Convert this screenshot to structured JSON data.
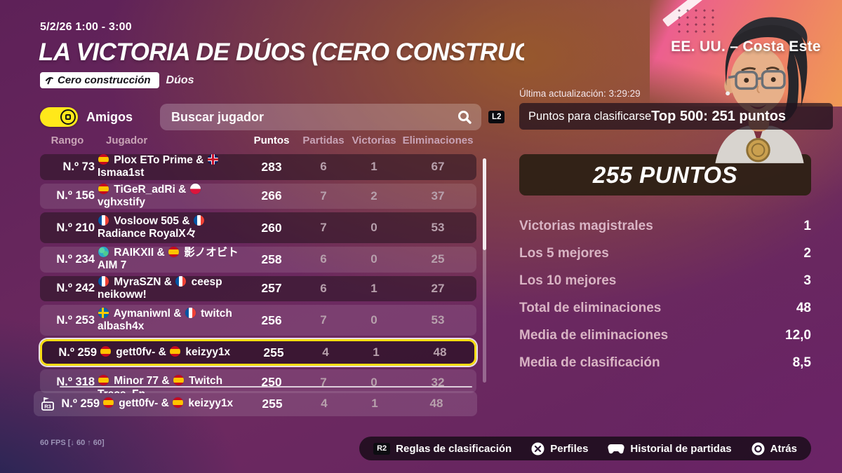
{
  "header": {
    "date_range": "5/2/26 1:00 - 3:00",
    "title": "LA VICTORIA DE DÚOS (CERO CONSTRUC",
    "mode_badge": "Cero construcción",
    "duos_label": "Dúos"
  },
  "region": "EE. UU. – Costa Este",
  "controls": {
    "friends_toggle_label": "Amigos",
    "friends_toggle_on": true,
    "search_placeholder": "Buscar jugador",
    "search_shortcut": "L2"
  },
  "table": {
    "columns": [
      "Rango",
      "Jugador",
      "Puntos",
      "Partidas",
      "Victorias",
      "Eliminaciones"
    ],
    "rows": [
      {
        "rank": "N.º 73",
        "flag1": "es",
        "name1": "Plox ETo Prime",
        "flag2": "gb",
        "name2": "Ismaa1st",
        "points": "283",
        "matches": "6",
        "wins": "1",
        "elims": "67",
        "style": "dark"
      },
      {
        "rank": "N.º 156",
        "flag1": "es",
        "name1": "TiGeR_adRi",
        "flag2": "pl",
        "name2": "vghxstify",
        "points": "266",
        "matches": "7",
        "wins": "2",
        "elims": "37",
        "style": "light"
      },
      {
        "rank": "N.º 210",
        "flag1": "fr",
        "name1": "Vosloow 505",
        "flag2": "fr",
        "name2": "Radiance RoyalX々",
        "points": "260",
        "matches": "7",
        "wins": "0",
        "elims": "53",
        "style": "dark tall"
      },
      {
        "rank": "N.º 234",
        "flag1": "globe",
        "name1": "RAIKXII",
        "flag2": "es",
        "name2": "影ノオビト AIM 7",
        "points": "258",
        "matches": "6",
        "wins": "0",
        "elims": "25",
        "style": "light"
      },
      {
        "rank": "N.º 242",
        "flag1": "fr",
        "name1": "MyraSZN",
        "flag2": "fr",
        "name2": "ceesp neikoww!",
        "points": "257",
        "matches": "6",
        "wins": "1",
        "elims": "27",
        "style": "dark"
      },
      {
        "rank": "N.º 253",
        "flag1": "se",
        "name1": "Aymaniwnl",
        "flag2": "fr",
        "name2": "twitch albash4x",
        "points": "256",
        "matches": "7",
        "wins": "0",
        "elims": "53",
        "style": "light tall"
      },
      {
        "rank": "N.º 259",
        "flag1": "es",
        "name1": "gett0fv-",
        "flag2": "es",
        "name2": "keizyy1x",
        "points": "255",
        "matches": "4",
        "wins": "1",
        "elims": "48",
        "style": "highlight"
      },
      {
        "rank": "N.º 318",
        "flag1": "es",
        "name1": "Minor 77",
        "flag2": "es",
        "name2": "Twitch Trece_Fn",
        "points": "250",
        "matches": "7",
        "wins": "0",
        "elims": "32",
        "style": "light clipped"
      }
    ],
    "pinned_row": {
      "shortcut": "R3",
      "rank": "N.º 259",
      "flag1": "es",
      "name1": "gett0fv-",
      "flag2": "es",
      "name2": "keizyy1x",
      "points": "255",
      "matches": "4",
      "wins": "1",
      "elims": "48",
      "style": "bare"
    }
  },
  "side_panel": {
    "last_update": "Última actualización: 3:29:29",
    "qualify_label": "Puntos para clasificarse",
    "qualify_value": "Top 500: 251 puntos",
    "points_banner": "255 PUNTOS",
    "stats": [
      {
        "label": "Victorias magistrales",
        "value": "1"
      },
      {
        "label": "Los 5 mejores",
        "value": "2"
      },
      {
        "label": "Los 10 mejores",
        "value": "3"
      },
      {
        "label": "Total de eliminaciones",
        "value": "48"
      },
      {
        "label": "Media de eliminaciones",
        "value": "12,0"
      },
      {
        "label": "Media de clasificación",
        "value": "8,5"
      }
    ]
  },
  "bottom_bar": {
    "items": [
      {
        "key": "R2",
        "icon": "r2-button",
        "label": "Reglas de clasificación"
      },
      {
        "icon": "cross-button",
        "label": "Perfiles"
      },
      {
        "icon": "gamepad",
        "label": "Historial de partidas"
      },
      {
        "icon": "circle-button",
        "label": "Atrás"
      }
    ]
  },
  "fps_counter": "60 FPS [↓ 60 ↑ 60]",
  "colors": {
    "accent_yellow": "#f7dd12",
    "toggle_yellow": "#ffe81a",
    "banner_bg": "#2d2014",
    "stat_label": "#d9b4c4",
    "bg_purple": "#5e2158",
    "bg_orange": "#995a2a",
    "bg_navy": "#1d2452",
    "avatar_pink": "#ec5f8f"
  }
}
